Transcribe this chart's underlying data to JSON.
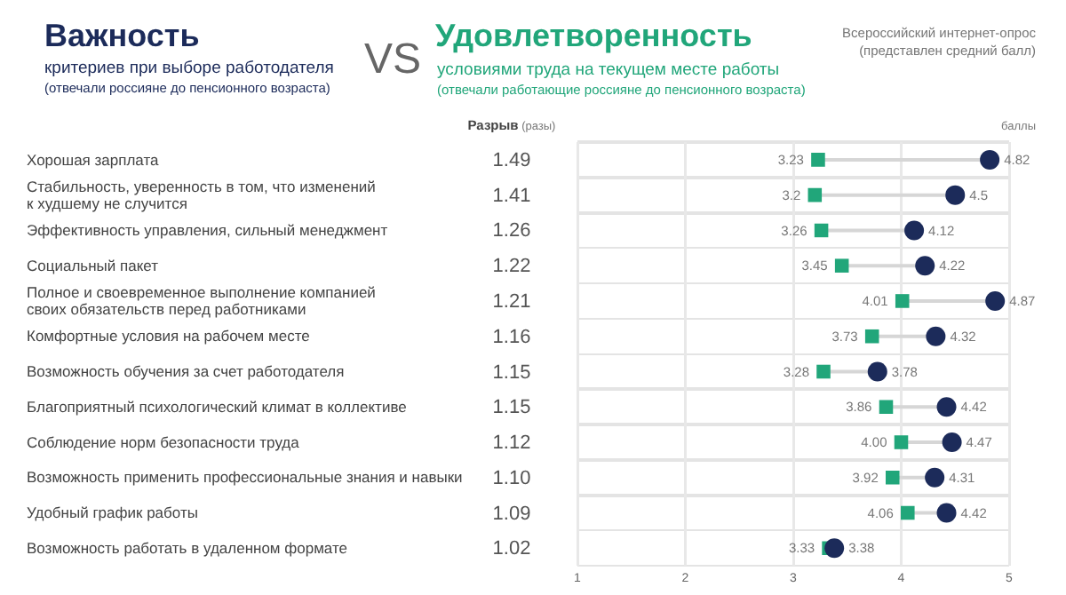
{
  "chart_data": {
    "type": "scatter",
    "categories": [
      "Хорошая зарплата",
      "Стабильность, уверенность в том, что изменений к худшему не случится",
      "Эффективность управления, сильный менеджмент",
      "Социальный пакет",
      "Полное и своевременное выполнение компанией своих обязательств перед работниками",
      "Комфортные условия на рабочем месте",
      "Возможность обучения за счет работодателя",
      "Благоприятный психологический климат в коллективе",
      "Соблюдение норм безопасности труда",
      "Возможность применить профессиональные знания и навыки",
      "Удобный график работы",
      "Возможность работать в удаленном формате"
    ],
    "series": [
      {
        "name": "Важность",
        "color": "#1c2b5a",
        "marker": "circle",
        "values": [
          4.82,
          4.5,
          4.12,
          4.22,
          4.87,
          4.32,
          3.78,
          4.42,
          4.47,
          4.31,
          4.42,
          3.38
        ],
        "value_labels": [
          "4.82",
          "4.5",
          "4.12",
          "4.22",
          "4.87",
          "4.32",
          "3.78",
          "4.42",
          "4.47",
          "4.31",
          "4.42",
          "3.38"
        ]
      },
      {
        "name": "Удовлетворенность",
        "color": "#21a67a",
        "marker": "square",
        "values": [
          3.23,
          3.2,
          3.26,
          3.45,
          4.01,
          3.73,
          3.28,
          3.86,
          4.0,
          3.92,
          4.06,
          3.33
        ],
        "value_labels": [
          "3.23",
          "3.2",
          "3.26",
          "3.45",
          "4.01",
          "3.73",
          "3.28",
          "3.86",
          "4.00",
          "3.92",
          "4.06",
          "3.33"
        ]
      }
    ],
    "orientation": "horizontal",
    "xlabel": "баллы",
    "xlim": [
      1,
      5
    ],
    "xticks": [
      1,
      2,
      3,
      4,
      5
    ],
    "grid": "x",
    "annotations": [
      "критериев при выборе работодателя",
      "(отвечали россияне до пенсионного возраста)",
      "VS",
      "условиями труда на текущем месте работы",
      "(отвечали работающие россияне до пенсионного возраста)",
      "Всероссийский интернет-опрос (представлен средний балл)",
      "Разрыв (разы)",
      "1.49",
      "1.41",
      "1.26",
      "1.22",
      "1.21",
      "1.16",
      "1.15",
      "1.15",
      "1.12",
      "1.10",
      "1.09",
      "1.02"
    ]
  }
}
